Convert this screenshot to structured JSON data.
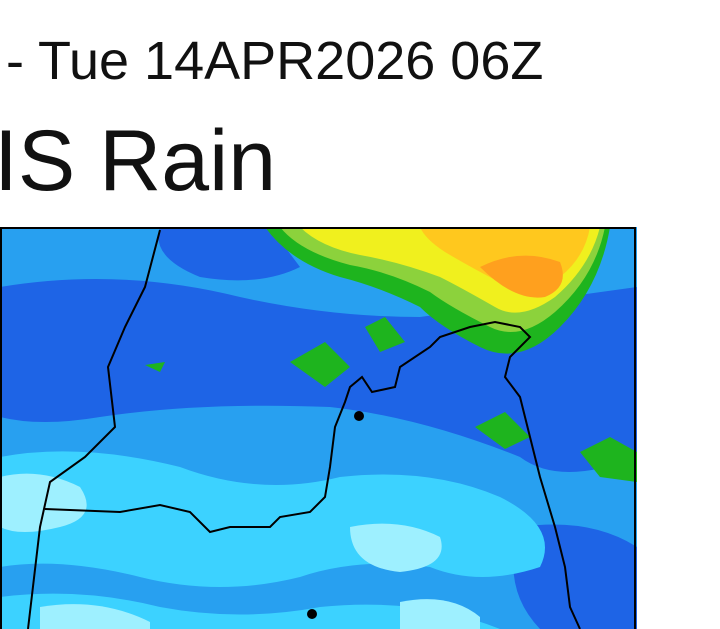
{
  "header": {
    "subtitle": "- Tue 14APR2026 06Z",
    "title": "IS Rain"
  },
  "map": {
    "field": "rain",
    "colors": {
      "light_cyan": "#9ef0ff",
      "cyan": "#3cd2ff",
      "sky_blue": "#28a0f0",
      "blue": "#1e64e6",
      "green": "#1eb41e",
      "light_green": "#8cd23c",
      "yellow": "#f0f01e",
      "gold": "#ffc81e",
      "orange": "#ffa01e",
      "border": "#000000"
    }
  }
}
